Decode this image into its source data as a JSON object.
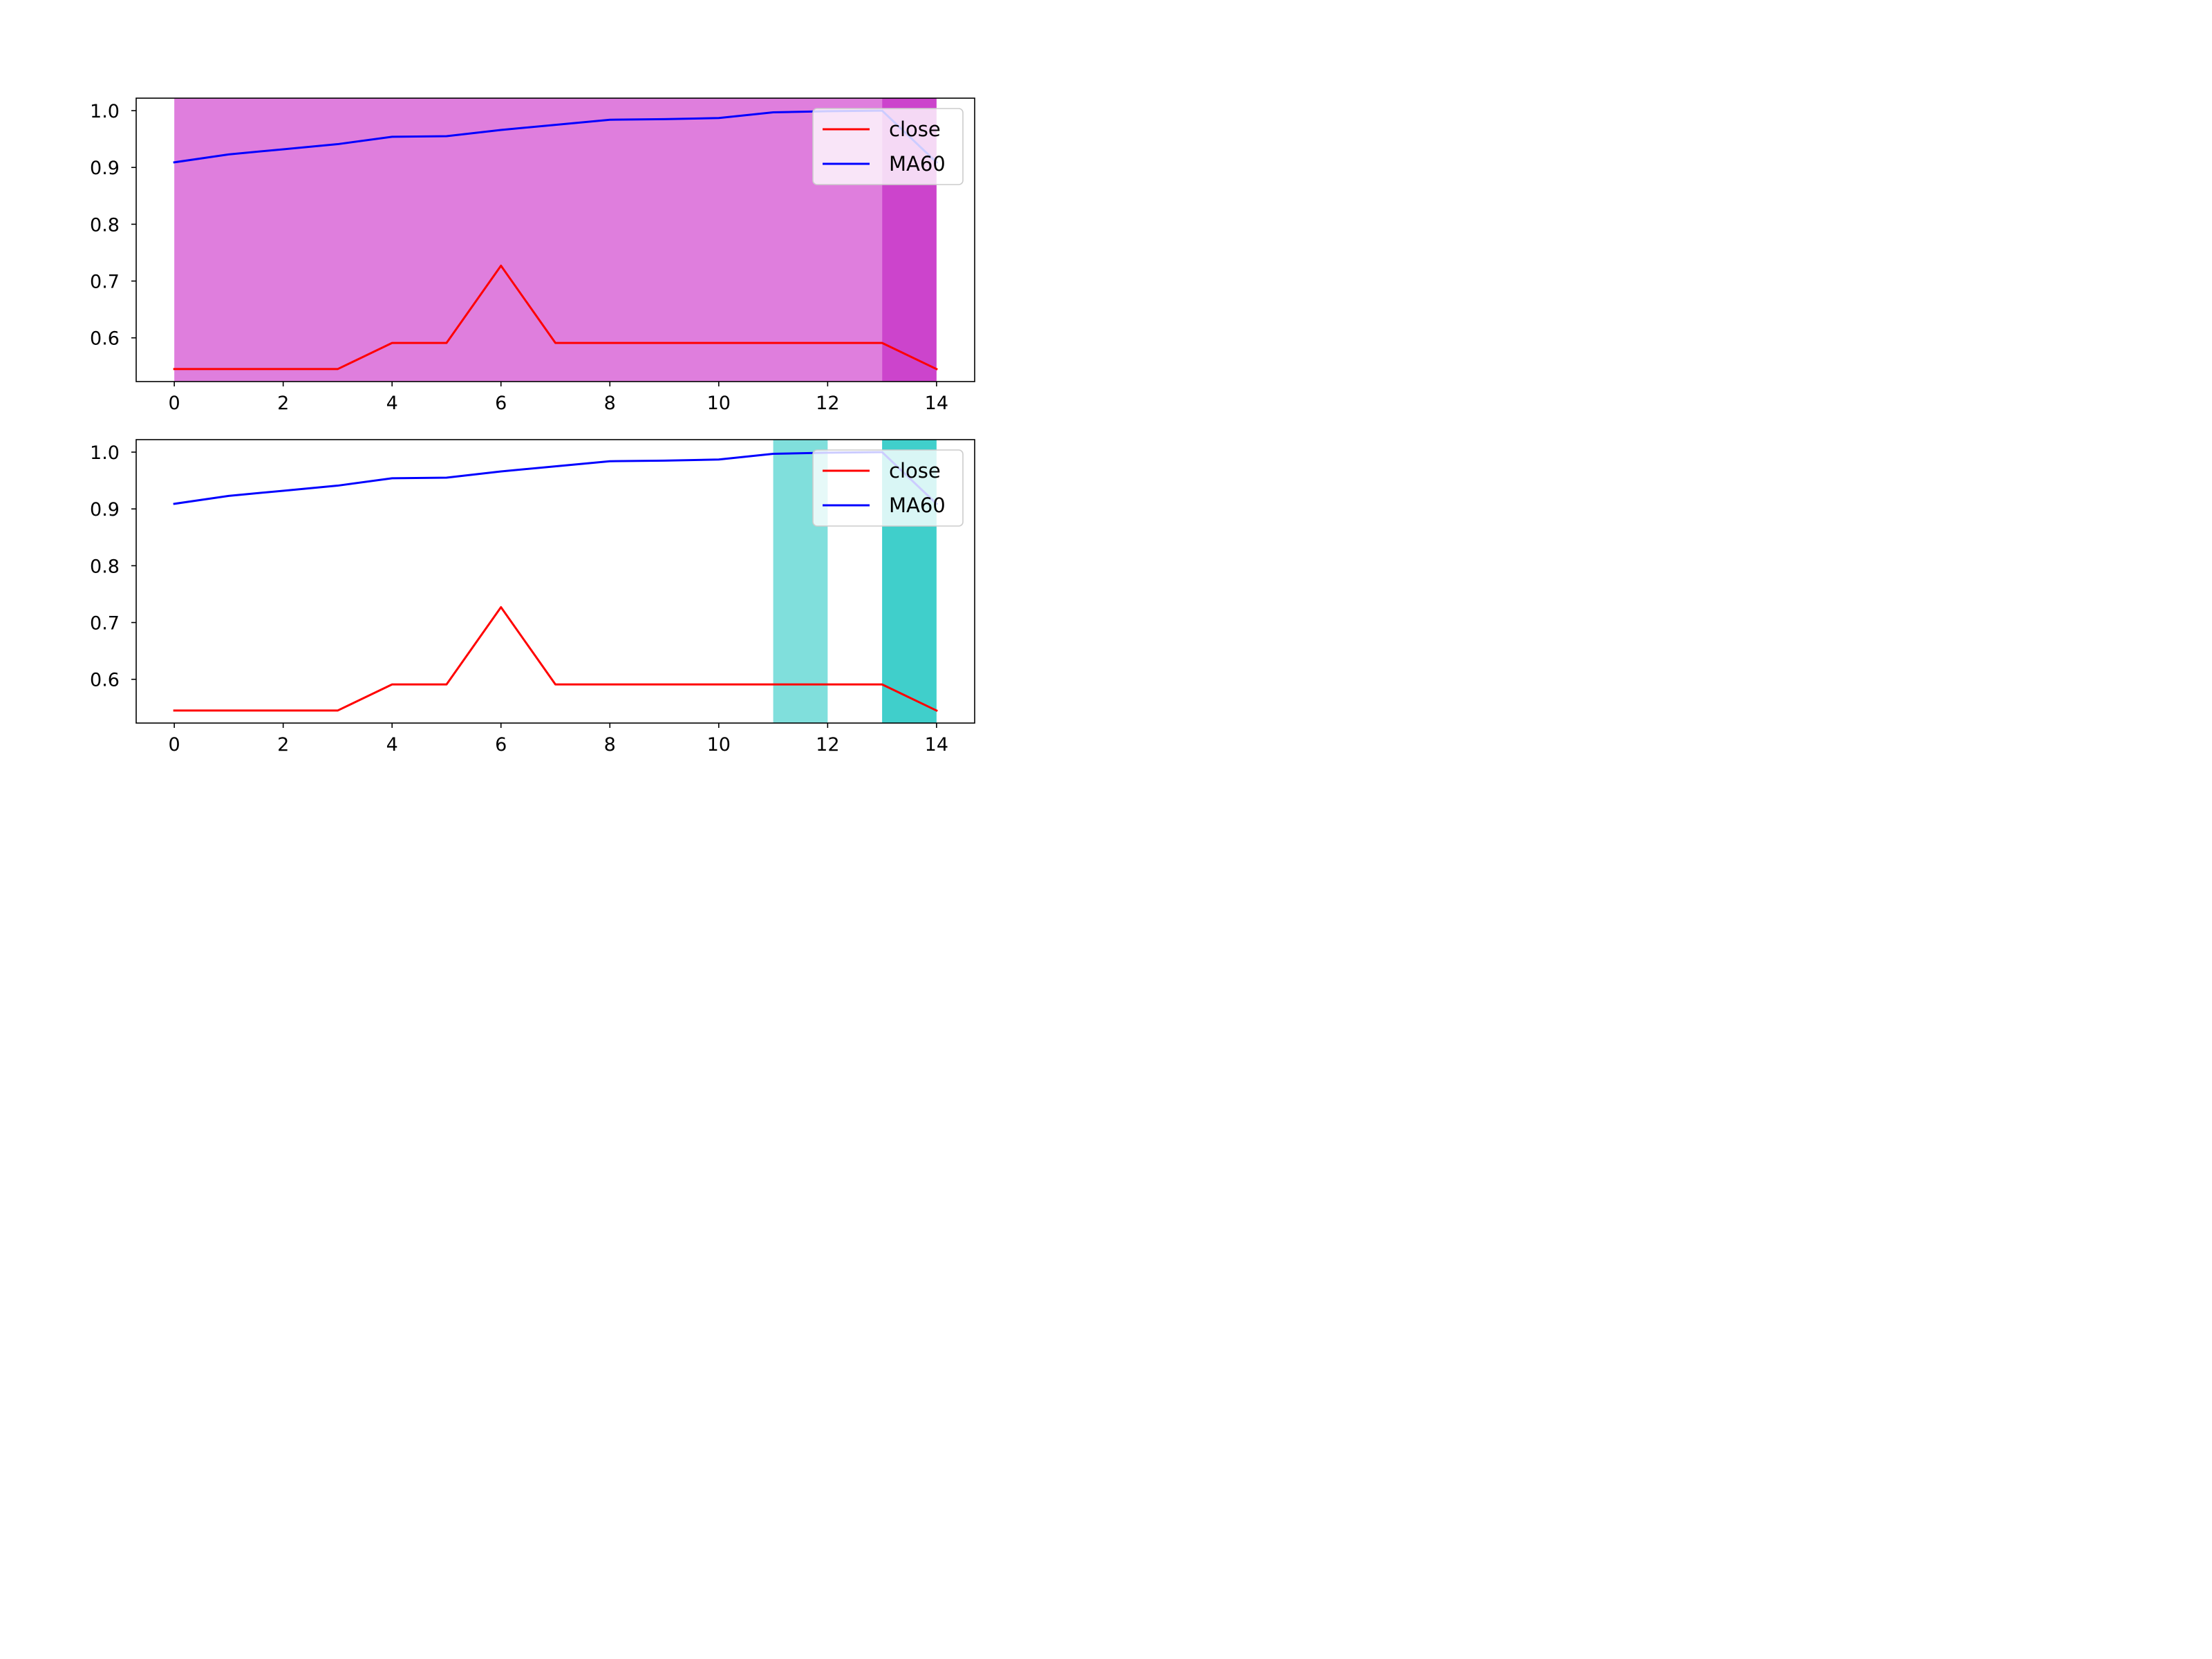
{
  "chart_data": [
    {
      "type": "line",
      "x": [
        0,
        1,
        2,
        3,
        4,
        5,
        6,
        7,
        8,
        9,
        10,
        11,
        12,
        13,
        14
      ],
      "series": [
        {
          "name": "close",
          "color": "#ff0000",
          "values": [
            0.545,
            0.545,
            0.545,
            0.545,
            0.591,
            0.591,
            0.727,
            0.591,
            0.591,
            0.591,
            0.591,
            0.591,
            0.591,
            0.591,
            0.545
          ]
        },
        {
          "name": "MA60",
          "color": "#0000ff",
          "values": [
            0.909,
            0.923,
            0.932,
            0.941,
            0.954,
            0.955,
            0.966,
            0.975,
            0.984,
            0.985,
            0.987,
            0.997,
            0.999,
            1.0,
            0.909
          ]
        }
      ],
      "shaded_spans": [
        {
          "x0": 0,
          "x1": 13,
          "color": "#df7edd"
        },
        {
          "x0": 13,
          "x1": 14,
          "color": "#cc44cc"
        }
      ],
      "xlim": [
        -0.7,
        14.7
      ],
      "ylim": [
        0.523,
        1.022
      ],
      "xticks": [
        0,
        2,
        4,
        6,
        8,
        10,
        12,
        14
      ],
      "yticks": [
        0.6,
        0.7,
        0.8,
        0.9,
        1.0
      ],
      "ytick_labels": [
        "0.6",
        "0.7",
        "0.8",
        "0.9",
        "1.0"
      ],
      "grid": false,
      "legend_position": "upper-right"
    },
    {
      "type": "line",
      "x": [
        0,
        1,
        2,
        3,
        4,
        5,
        6,
        7,
        8,
        9,
        10,
        11,
        12,
        13,
        14
      ],
      "series": [
        {
          "name": "close",
          "color": "#ff0000",
          "values": [
            0.545,
            0.545,
            0.545,
            0.545,
            0.591,
            0.591,
            0.727,
            0.591,
            0.591,
            0.591,
            0.591,
            0.591,
            0.591,
            0.591,
            0.545
          ]
        },
        {
          "name": "MA60",
          "color": "#0000ff",
          "values": [
            0.909,
            0.923,
            0.932,
            0.941,
            0.954,
            0.955,
            0.966,
            0.975,
            0.984,
            0.985,
            0.987,
            0.997,
            0.999,
            1.0,
            0.909
          ]
        }
      ],
      "shaded_spans": [
        {
          "x0": 11,
          "x1": 12,
          "color": "#80dfdc"
        },
        {
          "x0": 13,
          "x1": 14,
          "color": "#40cfcb"
        }
      ],
      "xlim": [
        -0.7,
        14.7
      ],
      "ylim": [
        0.523,
        1.022
      ],
      "xticks": [
        0,
        2,
        4,
        6,
        8,
        10,
        12,
        14
      ],
      "yticks": [
        0.6,
        0.7,
        0.8,
        0.9,
        1.0
      ],
      "ytick_labels": [
        "0.6",
        "0.7",
        "0.8",
        "0.9",
        "1.0"
      ],
      "grid": false,
      "legend_position": "upper-right"
    }
  ]
}
